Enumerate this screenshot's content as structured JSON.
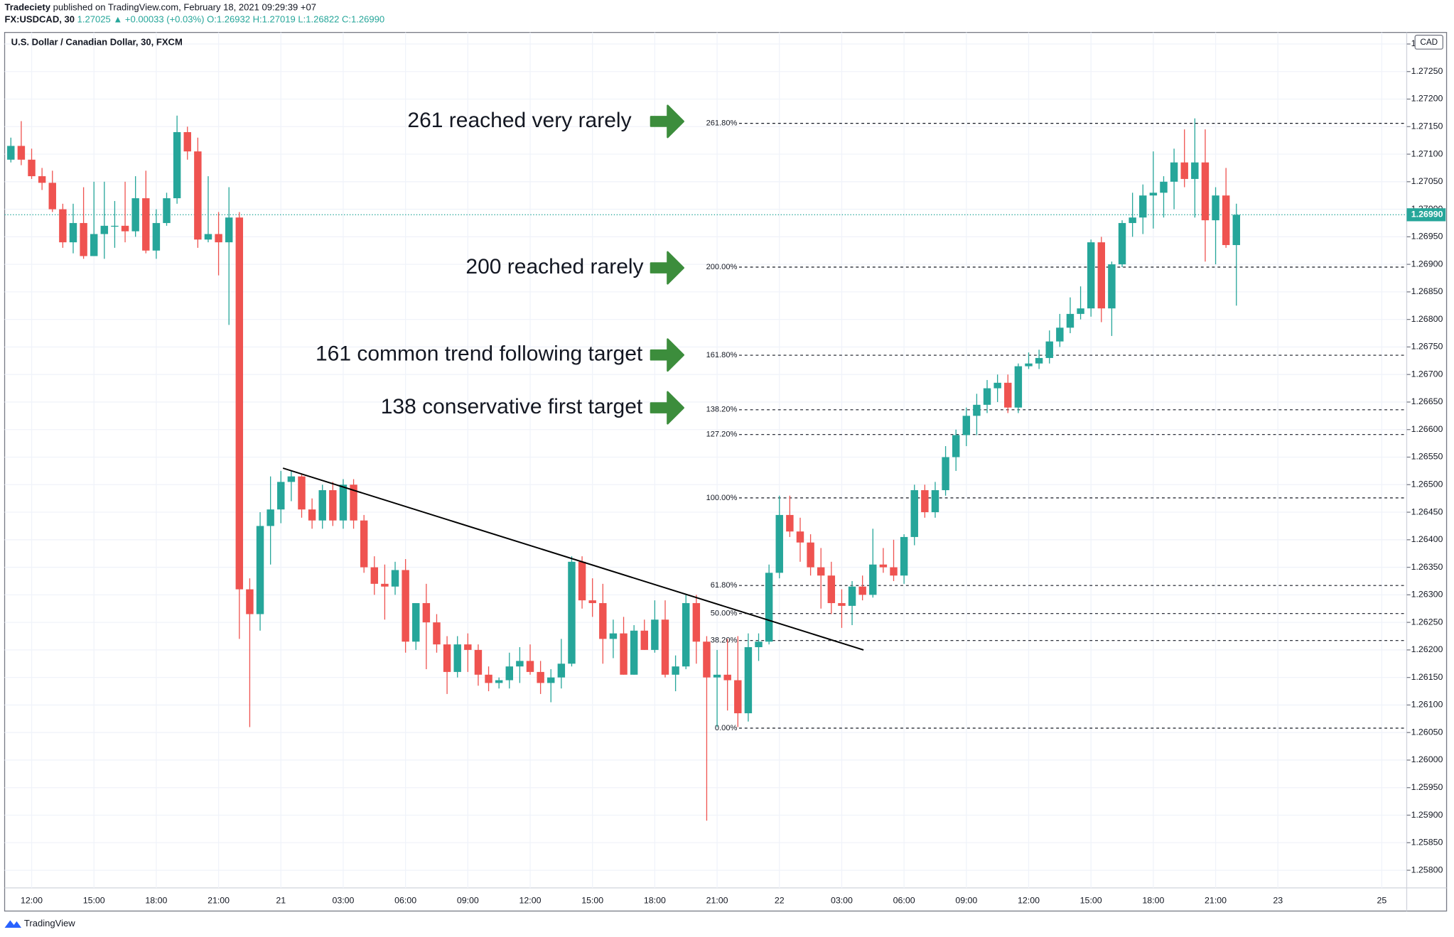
{
  "header": {
    "author": "Tradeciety",
    "published": "published on TradingView.com, February 18, 2021 09:29:39 +07",
    "symbol": "FX:USDCAD, 30",
    "last": "1.27025",
    "change": "▲ +0.00033 (+0.03%)",
    "open": "O:1.26932",
    "high": "H:1.27019",
    "low": "L:1.26822",
    "close": "C:1.26990"
  },
  "footer": {
    "brand": "TradingView"
  },
  "chart_data": {
    "type": "candlestick",
    "title": "U.S. Dollar / Canadian Dollar, 30, FXCM",
    "currency": "CAD",
    "up_color": "#26a69a",
    "down_color": "#ef5350",
    "open": [
      1.2709,
      1.27115,
      1.2709,
      1.2706,
      1.27048,
      1.27,
      1.2694,
      1.26975,
      1.26915,
      1.26955,
      1.2697,
      1.2697,
      1.2696,
      1.2702,
      1.26925,
      1.26975,
      1.2702,
      1.2714,
      1.27105,
      1.26945,
      1.26955,
      1.2694,
      1.26985,
      1.2631,
      1.26265,
      1.26425,
      1.26455,
      1.26505,
      1.26515,
      1.26455,
      1.26435,
      1.2649,
      1.26435,
      1.265,
      1.26435,
      1.2635,
      1.2632,
      1.26315,
      1.26345,
      1.26215,
      1.26285,
      1.2625,
      1.2621,
      1.2616,
      1.2621,
      1.262,
      1.26155,
      1.2614,
      1.26145,
      1.2617,
      1.2618,
      1.2616,
      1.2614,
      1.2615,
      1.26175,
      1.2636,
      1.2629,
      1.26285,
      1.2622,
      1.2623,
      1.26155,
      1.26235,
      1.262,
      1.26255,
      1.26155,
      1.2617,
      1.26285,
      1.26215,
      1.2615,
      1.26155,
      1.26145,
      1.26085,
      1.26205,
      1.26215,
      1.2634,
      1.26445,
      1.26415,
      1.26395,
      1.2635,
      1.26335,
      1.26285,
      1.2628,
      1.26315,
      1.263,
      1.26355,
      1.2635,
      1.26335,
      1.26405,
      1.2649,
      1.2645,
      1.2649,
      1.2655,
      1.2659,
      1.26625,
      1.26645,
      1.26675,
      1.26685,
      1.2664,
      1.26715,
      1.2672,
      1.2673,
      1.2676,
      1.26785,
      1.2681,
      1.2682,
      1.2694,
      1.2682,
      1.269,
      1.26975,
      1.26985,
      1.27025,
      1.2703,
      1.2705,
      1.27085,
      1.27055,
      1.27085,
      1.2698,
      1.27025,
      1.26935
    ],
    "high": [
      1.2713,
      1.2716,
      1.2711,
      1.27075,
      1.2707,
      1.2701,
      1.2701,
      1.2704,
      1.2705,
      1.2705,
      1.27015,
      1.2705,
      1.2706,
      1.2707,
      1.27,
      1.2703,
      1.2717,
      1.2715,
      1.2713,
      1.2706,
      1.26995,
      1.2704,
      1.26995,
      1.2633,
      1.2645,
      1.26515,
      1.26525,
      1.26525,
      1.2652,
      1.26475,
      1.265,
      1.26505,
      1.2651,
      1.2651,
      1.26445,
      1.2637,
      1.26355,
      1.2636,
      1.26365,
      1.26285,
      1.2632,
      1.26265,
      1.26225,
      1.26225,
      1.2623,
      1.2621,
      1.2617,
      1.2615,
      1.26195,
      1.26205,
      1.2621,
      1.2618,
      1.26165,
      1.2622,
      1.2637,
      1.2637,
      1.2633,
      1.2632,
      1.26255,
      1.2626,
      1.26245,
      1.26255,
      1.2629,
      1.2629,
      1.2619,
      1.263,
      1.263,
      1.26225,
      1.262,
      1.2622,
      1.26225,
      1.2623,
      1.2623,
      1.26355,
      1.2648,
      1.2648,
      1.2644,
      1.2641,
      1.26385,
      1.2636,
      1.2631,
      1.26325,
      1.26335,
      1.2642,
      1.26385,
      1.264,
      1.2641,
      1.265,
      1.265,
      1.26505,
      1.2657,
      1.266,
      1.2664,
      1.26665,
      1.2669,
      1.267,
      1.267,
      1.2672,
      1.2674,
      1.26745,
      1.2678,
      1.2681,
      1.2684,
      1.2686,
      1.26945,
      1.2695,
      1.26905,
      1.2698,
      1.2703,
      1.27045,
      1.27105,
      1.2706,
      1.2711,
      1.27145,
      1.27165,
      1.27145,
      1.2704,
      1.27075,
      1.2701
    ],
    "low": [
      1.27085,
      1.2708,
      1.27055,
      1.27035,
      1.26995,
      1.2693,
      1.2692,
      1.2691,
      1.26915,
      1.2691,
      1.2693,
      1.2694,
      1.2695,
      1.2692,
      1.2691,
      1.2697,
      1.2701,
      1.2709,
      1.2693,
      1.2694,
      1.2688,
      1.2679,
      1.2622,
      1.2606,
      1.26235,
      1.26355,
      1.2643,
      1.2647,
      1.2644,
      1.2642,
      1.2642,
      1.26425,
      1.2642,
      1.2642,
      1.2634,
      1.263,
      1.26255,
      1.263,
      1.26195,
      1.262,
      1.26165,
      1.26195,
      1.2612,
      1.2615,
      1.2616,
      1.26135,
      1.26125,
      1.2613,
      1.2613,
      1.2614,
      1.26155,
      1.2612,
      1.26105,
      1.2613,
      1.2617,
      1.26275,
      1.2626,
      1.26175,
      1.26185,
      1.26155,
      1.26155,
      1.262,
      1.26195,
      1.2615,
      1.26125,
      1.26165,
      1.26175,
      1.2589,
      1.2606,
      1.2609,
      1.2606,
      1.2607,
      1.2618,
      1.2621,
      1.2633,
      1.26405,
      1.2636,
      1.26335,
      1.26275,
      1.26265,
      1.2624,
      1.26245,
      1.2629,
      1.26295,
      1.2634,
      1.26325,
      1.2632,
      1.2639,
      1.2644,
      1.2644,
      1.2648,
      1.26525,
      1.2657,
      1.2659,
      1.2663,
      1.2665,
      1.2663,
      1.2663,
      1.2671,
      1.2671,
      1.2672,
      1.2675,
      1.26775,
      1.268,
      1.26805,
      1.26795,
      1.2677,
      1.26895,
      1.2695,
      1.26955,
      1.26965,
      1.26985,
      1.27,
      1.2704,
      1.26985,
      1.26905,
      1.269,
      1.2693,
      1.26825
    ],
    "close": [
      1.27115,
      1.2709,
      1.2706,
      1.27048,
      1.27,
      1.2694,
      1.26975,
      1.26915,
      1.26955,
      1.2697,
      1.2697,
      1.2696,
      1.2702,
      1.26925,
      1.26975,
      1.2702,
      1.2714,
      1.27105,
      1.26945,
      1.26955,
      1.2694,
      1.26985,
      1.2631,
      1.26265,
      1.26425,
      1.26455,
      1.26505,
      1.26515,
      1.26455,
      1.26435,
      1.2649,
      1.26435,
      1.265,
      1.26435,
      1.2635,
      1.2632,
      1.26315,
      1.26345,
      1.26215,
      1.26285,
      1.2625,
      1.2621,
      1.2616,
      1.2621,
      1.262,
      1.26155,
      1.2614,
      1.26145,
      1.2617,
      1.2618,
      1.2616,
      1.2614,
      1.2615,
      1.26175,
      1.2636,
      1.2629,
      1.26285,
      1.2622,
      1.2623,
      1.26155,
      1.26235,
      1.262,
      1.26255,
      1.26155,
      1.2617,
      1.26285,
      1.26215,
      1.2615,
      1.26155,
      1.26145,
      1.26085,
      1.26205,
      1.26215,
      1.2634,
      1.26445,
      1.26415,
      1.26395,
      1.2635,
      1.26335,
      1.26285,
      1.2628,
      1.26315,
      1.263,
      1.26355,
      1.2635,
      1.26335,
      1.26405,
      1.2649,
      1.2645,
      1.2649,
      1.2655,
      1.2659,
      1.26625,
      1.26645,
      1.26675,
      1.26685,
      1.2664,
      1.26715,
      1.2672,
      1.2673,
      1.2676,
      1.26785,
      1.2681,
      1.2682,
      1.2694,
      1.2682,
      1.269,
      1.26975,
      1.26985,
      1.27025,
      1.2703,
      1.2705,
      1.27085,
      1.27055,
      1.27085,
      1.2698,
      1.27025,
      1.26935,
      1.2699
    ],
    "xlim": [
      -0.6,
      134.4
    ],
    "xticks": [
      {
        "value": 2,
        "label": "12:00"
      },
      {
        "value": 8,
        "label": "15:00"
      },
      {
        "value": 14,
        "label": "18:00"
      },
      {
        "value": 20,
        "label": "21:00"
      },
      {
        "value": 26,
        "label": "21"
      },
      {
        "value": 32,
        "label": "03:00"
      },
      {
        "value": 38,
        "label": "06:00"
      },
      {
        "value": 44,
        "label": "09:00"
      },
      {
        "value": 50,
        "label": "12:00"
      },
      {
        "value": 56,
        "label": "15:00"
      },
      {
        "value": 62,
        "label": "18:00"
      },
      {
        "value": 68,
        "label": "21:00"
      },
      {
        "value": 74,
        "label": "22"
      },
      {
        "value": 80,
        "label": "03:00"
      },
      {
        "value": 86,
        "label": "06:00"
      },
      {
        "value": 92,
        "label": "09:00"
      },
      {
        "value": 98,
        "label": "12:00"
      },
      {
        "value": 104,
        "label": "15:00"
      },
      {
        "value": 110,
        "label": "18:00"
      },
      {
        "value": 116,
        "label": "21:00"
      },
      {
        "value": 122,
        "label": "23"
      },
      {
        "value": 132,
        "label": "25"
      }
    ],
    "ylim": [
      1.25768,
      1.27321
    ],
    "yticks": [
      {
        "value": 1.258,
        "label": "1.25800"
      },
      {
        "value": 1.2585,
        "label": "1.25850"
      },
      {
        "value": 1.259,
        "label": "1.25900"
      },
      {
        "value": 1.2595,
        "label": "1.25950"
      },
      {
        "value": 1.26,
        "label": "1.26000"
      },
      {
        "value": 1.2605,
        "label": "1.26050"
      },
      {
        "value": 1.261,
        "label": "1.26100"
      },
      {
        "value": 1.2615,
        "label": "1.26150"
      },
      {
        "value": 1.262,
        "label": "1.26200"
      },
      {
        "value": 1.2625,
        "label": "1.26250"
      },
      {
        "value": 1.263,
        "label": "1.26300"
      },
      {
        "value": 1.2635,
        "label": "1.26350"
      },
      {
        "value": 1.264,
        "label": "1.26400"
      },
      {
        "value": 1.2645,
        "label": "1.26450"
      },
      {
        "value": 1.265,
        "label": "1.26500"
      },
      {
        "value": 1.2655,
        "label": "1.26550"
      },
      {
        "value": 1.266,
        "label": "1.26600"
      },
      {
        "value": 1.2665,
        "label": "1.26650"
      },
      {
        "value": 1.267,
        "label": "1.26700"
      },
      {
        "value": 1.2675,
        "label": "1.26750"
      },
      {
        "value": 1.268,
        "label": "1.26800"
      },
      {
        "value": 1.2685,
        "label": "1.26850"
      },
      {
        "value": 1.269,
        "label": "1.26900"
      },
      {
        "value": 1.2695,
        "label": "1.26950"
      },
      {
        "value": 1.27,
        "label": "1.27000"
      },
      {
        "value": 1.2705,
        "label": "1.27050"
      },
      {
        "value": 1.271,
        "label": "1.27100"
      },
      {
        "value": 1.2715,
        "label": "1.27150"
      },
      {
        "value": 1.272,
        "label": "1.27200"
      },
      {
        "value": 1.2725,
        "label": "1.27250"
      },
      {
        "value": 1.273,
        "label": "1.27300"
      }
    ],
    "price_line": {
      "value": 1.2699,
      "label": "1.26990",
      "color": "#26a69a"
    },
    "fib_levels": [
      {
        "price": 1.27156,
        "label": "261.80%"
      },
      {
        "price": 1.26895,
        "label": "200.00%"
      },
      {
        "price": 1.26735,
        "label": "161.80%"
      },
      {
        "price": 1.26636,
        "label": "138.20%"
      },
      {
        "price": 1.26591,
        "label": "127.20%"
      },
      {
        "price": 1.26476,
        "label": "100.00%"
      },
      {
        "price": 1.26317,
        "label": "61.80%"
      },
      {
        "price": 1.26266,
        "label": "50.00%"
      },
      {
        "price": 1.26217,
        "label": "38.20%"
      },
      {
        "price": 1.26058,
        "label": "0.00%"
      }
    ],
    "trendline": {
      "x": [
        26.2,
        82.1
      ],
      "y": [
        1.2653,
        1.262
      ]
    },
    "annotations": [
      "261 reached very rarely",
      "200 reached rarely",
      "161 common trend following target",
      "138 conservative first target"
    ]
  }
}
